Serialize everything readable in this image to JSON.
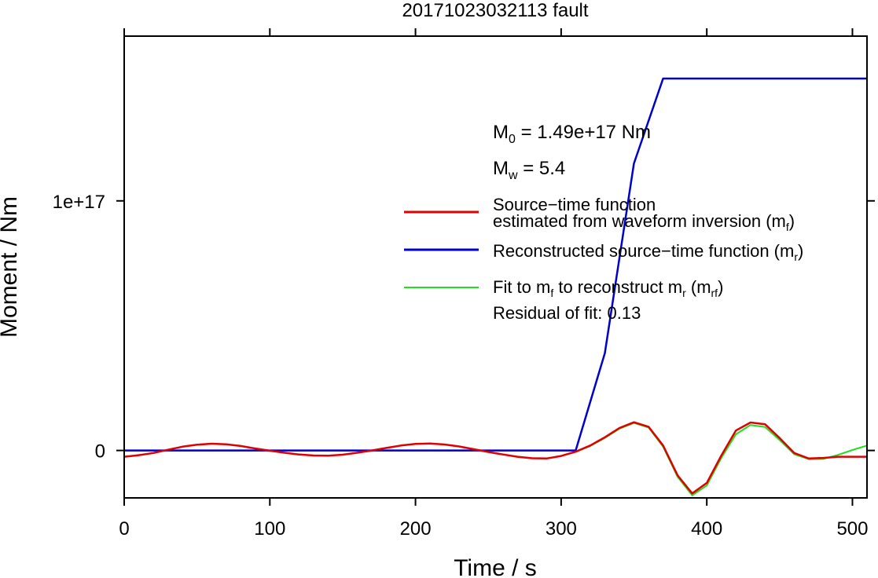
{
  "chart_data": {
    "type": "line",
    "title": "20171023032113 fault",
    "xlabel": "Time / s",
    "ylabel": "Moment / Nm",
    "xlim": [
      0,
      510
    ],
    "ylim": [
      -1.9e+16,
      1.66e+17
    ],
    "x_ticks": [
      0,
      100,
      200,
      300,
      400,
      500
    ],
    "x_tick_labels": [
      "0",
      "100",
      "200",
      "300",
      "400",
      "500"
    ],
    "y_ticks": [
      0,
      1e+17
    ],
    "y_tick_labels": [
      "0",
      "1e+17"
    ],
    "grid": false,
    "legend_position": "center-right",
    "annotations": {
      "m0_prefix": "M",
      "m0_sub": "0",
      "m0_suffix": " = 1.49e+17 Nm",
      "mw_prefix": "M",
      "mw_sub": "w",
      "mw_suffix": " = 5.4",
      "residual": "Residual of fit: 0.13"
    },
    "legend": {
      "red_line1": "Source−time function",
      "red_line2": "estimated from waveform inversion (m",
      "red_line2_sub": "f",
      "red_line2_end": ")",
      "blue_text": "Reconstructed source−time function (m",
      "blue_sub": "r",
      "blue_end": ")",
      "green_a": "Fit to m",
      "green_a_sub": "f",
      "green_b": " to reconstruct m",
      "green_b_sub": "r",
      "green_c": " (m",
      "green_c_sub": "rf",
      "green_d": ")"
    },
    "colors": {
      "mf": "#e00000",
      "mr": "#0000cc",
      "mrf": "#22dd22"
    },
    "series": [
      {
        "key": "mf",
        "x": [
          0,
          10,
          20,
          30,
          40,
          50,
          60,
          70,
          80,
          90,
          100,
          110,
          120,
          130,
          140,
          150,
          160,
          170,
          180,
          190,
          200,
          210,
          220,
          230,
          240,
          250,
          260,
          270,
          280,
          290,
          300,
          310,
          320,
          330,
          340,
          350,
          360,
          370,
          380,
          390,
          400,
          410,
          420,
          430,
          440,
          450,
          460,
          470,
          480,
          490,
          500,
          510
        ],
        "y": [
          -2500000000000000.0,
          -1900000000000000.0,
          -1000000000000000.0,
          300000000000000.0,
          1500000000000000.0,
          2300000000000000.0,
          2700000000000000.0,
          2500000000000000.0,
          1800000000000000.0,
          800000000000000.0,
          -100000000000000.0,
          -900000000000000.0,
          -1600000000000000.0,
          -2000000000000000.0,
          -2100000000000000.0,
          -1700000000000000.0,
          -900000000000000.0,
          0,
          1000000000000000.0,
          2000000000000000.0,
          2600000000000000.0,
          2800000000000000.0,
          2400000000000000.0,
          1600000000000000.0,
          500000000000000.0,
          -600000000000000.0,
          -1600000000000000.0,
          -2500000000000000.0,
          -3100000000000000.0,
          -3200000000000000.0,
          -2200000000000000.0,
          -500000000000000.0,
          2000000000000000.0,
          5300000000000000.0,
          9000000000000000.0,
          1.13e+16,
          9500000000000000.0,
          2000000000000000.0,
          -1e+16,
          -1.72e+16,
          -1.3e+16,
          -2000000000000000.0,
          8000000000000000.0,
          1.12e+16,
          1.05e+16,
          5000000000000000.0,
          -1000000000000000.0,
          -3200000000000000.0,
          -3000000000000000.0,
          -2500000000000000.0,
          -2500000000000000.0,
          -2500000000000000.0
        ]
      },
      {
        "key": "mr",
        "x": [
          0,
          310,
          330,
          350,
          370,
          510
        ],
        "y": [
          0,
          0,
          3.9e+16,
          1.15e+17,
          1.49e+17,
          1.49e+17
        ]
      },
      {
        "key": "mrf",
        "x": [
          310,
          320,
          330,
          340,
          350,
          360,
          370,
          380,
          390,
          400,
          410,
          420,
          430,
          440,
          450,
          460,
          470,
          480,
          490,
          500,
          510
        ],
        "y": [
          -500000000000000.0,
          1800000000000000.0,
          5000000000000000.0,
          8700000000000000.0,
          1.1e+16,
          9200000000000000.0,
          1500000000000000.0,
          -1.06e+16,
          -1.8e+16,
          -1.4e+16,
          -3000000000000000.0,
          6500000000000000.0,
          1.02e+16,
          9400000000000000.0,
          4200000000000000.0,
          -1500000000000000.0,
          -3500000000000000.0,
          -3400000000000000.0,
          -1800000000000000.0,
          200000000000000.0,
          2000000000000000.0
        ]
      }
    ]
  }
}
